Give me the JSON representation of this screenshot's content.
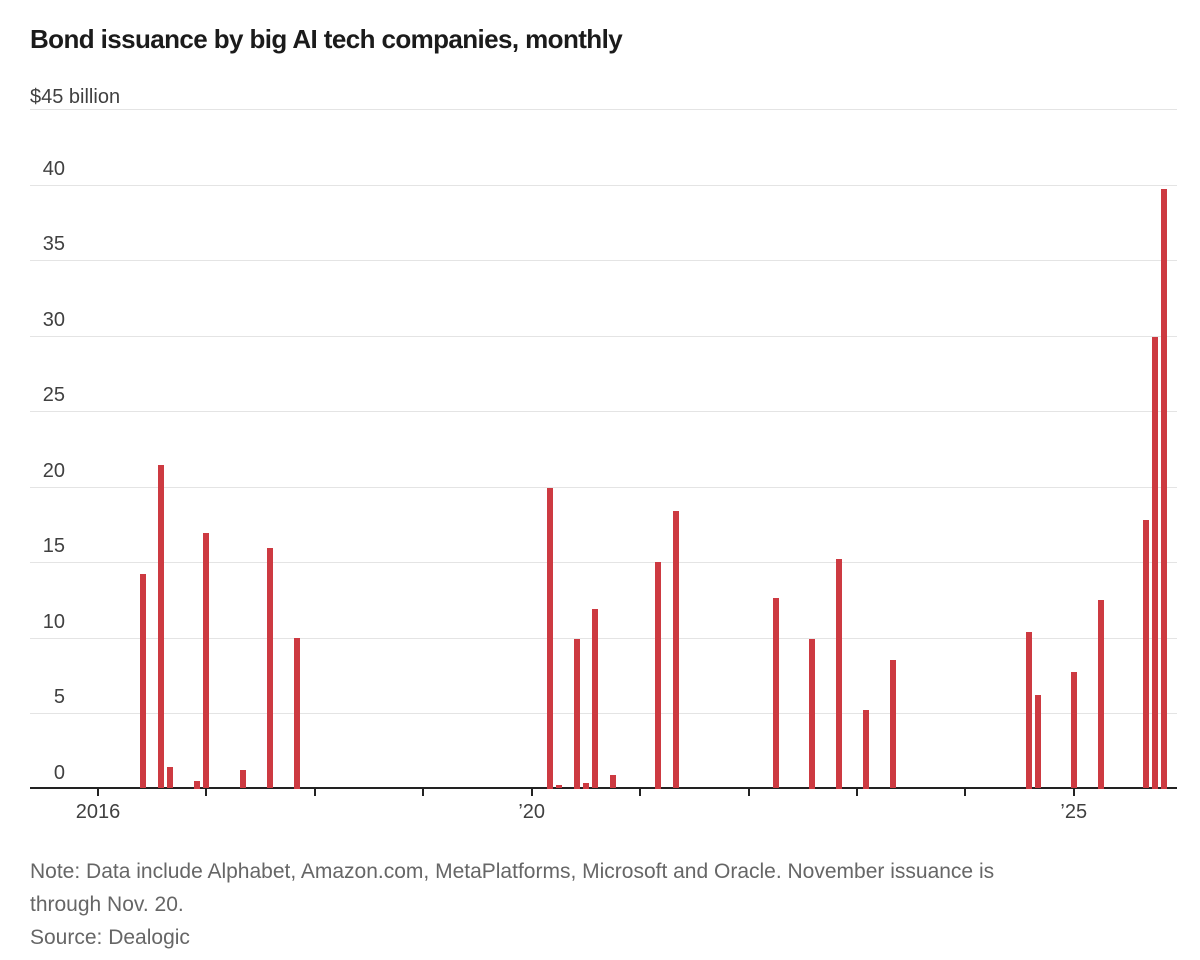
{
  "header": {
    "title": "Bond issuance by big AI tech companies, monthly"
  },
  "chart_data": {
    "type": "bar",
    "title": "Bond issuance by big AI tech companies, monthly",
    "unit_label": "$45 billion",
    "xlabel": "",
    "ylabel": "$ billion",
    "ylim": [
      0,
      45
    ],
    "ytick_interval": 5,
    "yticks_labeled": [
      "40",
      "35",
      "30",
      "25",
      "20",
      "15",
      "10",
      "5",
      "0"
    ],
    "grid": "horizontal",
    "series_color": "#cd3a41",
    "x_axis": {
      "start_month": "Jan 2016",
      "end_month": "Nov 2025",
      "tick_years": [
        2016,
        2017,
        2018,
        2019,
        2020,
        2021,
        2022,
        2023,
        2024,
        2025
      ],
      "labeled_ticks": [
        {
          "year": 2016,
          "label": "2016"
        },
        {
          "year": 2020,
          "label": "’20"
        },
        {
          "year": 2025,
          "label": "’25"
        }
      ]
    },
    "bars": [
      {
        "month": "Jun 2016",
        "value": 14.2
      },
      {
        "month": "Aug 2016",
        "value": 21.4
      },
      {
        "month": "Sep 2016",
        "value": 1.4
      },
      {
        "month": "Dec 2016",
        "value": 0.5
      },
      {
        "month": "Jan 2017",
        "value": 16.9
      },
      {
        "month": "May 2017",
        "value": 1.2
      },
      {
        "month": "Aug 2017",
        "value": 15.9
      },
      {
        "month": "Nov 2017",
        "value": 10.0
      },
      {
        "month": "Mar 2020",
        "value": 19.9
      },
      {
        "month": "Apr 2020",
        "value": 0.25
      },
      {
        "month": "Jun 2020",
        "value": 9.9
      },
      {
        "month": "Jul 2020",
        "value": 0.4
      },
      {
        "month": "Aug 2020",
        "value": 11.9
      },
      {
        "month": "Oct 2020",
        "value": 0.9
      },
      {
        "month": "Mar 2021",
        "value": 15.0
      },
      {
        "month": "May 2021",
        "value": 18.4
      },
      {
        "month": "Apr 2022",
        "value": 12.6
      },
      {
        "month": "Aug 2022",
        "value": 9.9
      },
      {
        "month": "Nov 2022",
        "value": 15.2
      },
      {
        "month": "Feb 2023",
        "value": 5.2
      },
      {
        "month": "May 2023",
        "value": 8.5
      },
      {
        "month": "Aug 2024",
        "value": 10.4
      },
      {
        "month": "Sep 2024",
        "value": 6.2
      },
      {
        "month": "Jan 2025",
        "value": 7.7
      },
      {
        "month": "Apr 2025",
        "value": 12.5
      },
      {
        "month": "Sep 2025",
        "value": 17.8
      },
      {
        "month": "Oct 2025",
        "value": 29.9
      },
      {
        "month": "Nov 2025",
        "value": 39.7
      }
    ]
  },
  "footer": {
    "note_line1": "Note: Data include Alphabet, Amazon.com, MetaPlatforms, Microsoft and Oracle. November issuance is",
    "note_line2": "through Nov. 20.",
    "source": "Source: Dealogic"
  }
}
